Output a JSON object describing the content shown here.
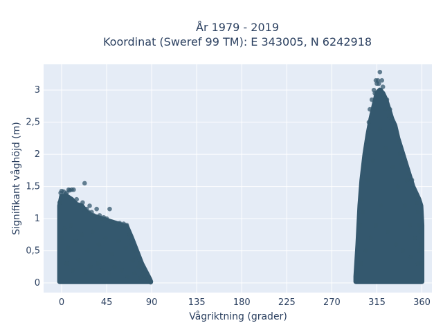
{
  "chart_data": {
    "type": "scatter",
    "title": [
      "År 1979 - 2019",
      "Koordinat (Sweref 99 TM): E 343005, N 6242918"
    ],
    "xlabel": "Vågriktning (grader)",
    "ylabel": "Signifikant våghöjd (m)",
    "xlim": [
      -18,
      370
    ],
    "ylim": [
      -0.15,
      3.4
    ],
    "x_ticks": [
      0,
      45,
      90,
      135,
      180,
      225,
      270,
      315,
      360
    ],
    "x_tick_labels": [
      "0",
      "45",
      "90",
      "135",
      "180",
      "225",
      "270",
      "315",
      "360"
    ],
    "y_ticks": [
      0,
      0.5,
      1,
      1.5,
      2,
      2.5,
      3
    ],
    "y_tick_labels": [
      "0",
      "0,5",
      "1",
      "1,5",
      "2",
      "2,5",
      "3"
    ],
    "grid": true,
    "marker_color": "#34586e",
    "plot_bg": "#e5ecf6",
    "series": [
      {
        "x": [
          -2,
          -1,
          0,
          2,
          4,
          5,
          7,
          8,
          10,
          12,
          15,
          18,
          21,
          23,
          25,
          27,
          28,
          30,
          32,
          35,
          38,
          40,
          42,
          45,
          48,
          50,
          52,
          55,
          58,
          60,
          62,
          65,
          68,
          70,
          72,
          75,
          78,
          80,
          82,
          84,
          86,
          88,
          89,
          295,
          296,
          298,
          300,
          302,
          305,
          307,
          308,
          310,
          312,
          313,
          314,
          315,
          316,
          317,
          318,
          319,
          320,
          321,
          322,
          323,
          325,
          327,
          328,
          330,
          332,
          333,
          335,
          337,
          338,
          340,
          342,
          345,
          347,
          350,
          352,
          354,
          355,
          356,
          357,
          358,
          359,
          360,
          0,
          3,
          6,
          9,
          14,
          20,
          26,
          31,
          37,
          44,
          50,
          57,
          64,
          71,
          77,
          83,
          87,
          301,
          306,
          311,
          318,
          324,
          331,
          336,
          343,
          348,
          353,
          357,
          5,
          11,
          17,
          24,
          29,
          36,
          41,
          47,
          53,
          60,
          66,
          73,
          79,
          299,
          304,
          309,
          314,
          319,
          326,
          334,
          341,
          349,
          356
        ],
        "y": [
          1.25,
          1.4,
          1.43,
          1.42,
          1.38,
          1.4,
          1.45,
          1.44,
          1.45,
          1.45,
          1.3,
          1.2,
          1.25,
          1.55,
          1.15,
          1.1,
          1.2,
          1.1,
          1.05,
          1.15,
          1.05,
          1.0,
          1.02,
          1.0,
          1.15,
          0.95,
          0.92,
          0.9,
          0.93,
          0.9,
          0.92,
          0.9,
          0.75,
          0.6,
          0.5,
          0.4,
          0.3,
          0.2,
          0.15,
          0.1,
          0.06,
          0.03,
          0.01,
          0.15,
          0.4,
          0.9,
          1.3,
          1.8,
          2.2,
          2.5,
          2.7,
          2.85,
          3.0,
          2.95,
          3.15,
          3.1,
          3.15,
          3.1,
          3.28,
          3.0,
          3.15,
          3.05,
          2.9,
          2.7,
          2.85,
          2.6,
          2.7,
          2.55,
          2.4,
          2.45,
          2.3,
          2.2,
          2.0,
          1.85,
          1.9,
          1.6,
          1.7,
          1.6,
          1.45,
          1.35,
          1.25,
          1.1,
          0.9,
          0.8,
          0.6,
          0.3,
          0.7,
          0.85,
          0.55,
          0.9,
          0.65,
          0.75,
          0.5,
          0.8,
          0.6,
          0.7,
          0.45,
          0.65,
          0.55,
          0.35,
          0.25,
          0.12,
          0.05,
          1.1,
          1.6,
          1.9,
          2.4,
          2.1,
          1.8,
          1.5,
          1.2,
          0.9,
          0.7,
          0.5,
          0.3,
          0.2,
          0.35,
          0.15,
          0.25,
          0.3,
          0.2,
          0.15,
          0.25,
          0.2,
          0.1,
          0.15,
          0.08,
          0.3,
          0.5,
          0.7,
          0.9,
          1.2,
          0.8,
          0.6,
          0.5,
          0.4,
          0.3
        ]
      }
    ],
    "dense_regions": [
      {
        "x_values": [
          -2,
          0,
          5,
          10,
          15,
          20,
          25,
          30,
          40,
          50,
          60,
          65,
          70,
          75,
          80,
          85,
          88,
          89
        ],
        "y_top": [
          1.2,
          1.35,
          1.35,
          1.3,
          1.22,
          1.2,
          1.1,
          1.05,
          1.0,
          0.95,
          0.9,
          0.88,
          0.7,
          0.5,
          0.3,
          0.15,
          0.06,
          0.02
        ]
      },
      {
        "x_values": [
          294,
          296,
          298,
          300,
          303,
          306,
          309,
          312,
          315,
          318,
          321,
          324,
          327,
          330,
          333,
          336,
          339,
          342,
          345,
          348,
          351,
          354,
          357,
          359,
          360
        ],
        "y_top": [
          0.1,
          0.6,
          1.2,
          1.6,
          2.0,
          2.3,
          2.55,
          2.75,
          2.95,
          3.0,
          2.95,
          2.85,
          2.7,
          2.55,
          2.45,
          2.25,
          2.1,
          1.95,
          1.8,
          1.65,
          1.5,
          1.4,
          1.3,
          1.2,
          0.9
        ]
      }
    ]
  }
}
